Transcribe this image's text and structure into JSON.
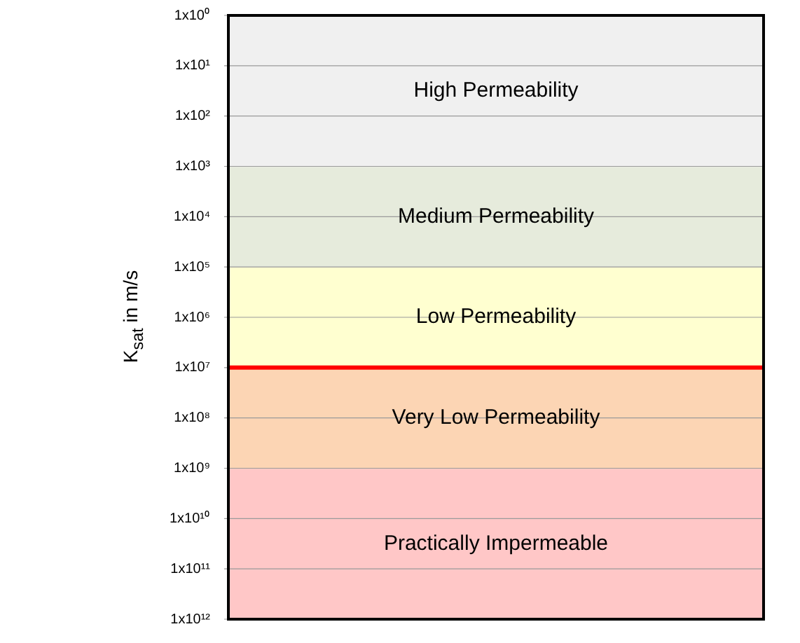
{
  "chart_data": {
    "type": "bar",
    "ylabel": "K$_{sat}$ in m/s",
    "log": "y",
    "ylim": [
      1000000000000.0,
      1
    ],
    "yticks": [
      {
        "value": 1,
        "label": "1x10⁰"
      },
      {
        "value": 10.0,
        "label": "1x10¹"
      },
      {
        "value": 100.0,
        "label": "1x10²"
      },
      {
        "value": 1000.0,
        "label": "1x10³"
      },
      {
        "value": 10000.0,
        "label": "1x10⁴"
      },
      {
        "value": 100000.0,
        "label": "1x10⁵"
      },
      {
        "value": 1000000.0,
        "label": "1x10⁶"
      },
      {
        "value": 10000000.0,
        "label": "1x10⁷"
      },
      {
        "value": 100000000.0,
        "label": "1x10⁸"
      },
      {
        "value": 1000000000.0,
        "label": "1x10⁹"
      },
      {
        "value": 10000000000.0,
        "label": "1x10¹⁰"
      },
      {
        "value": 100000000000.0,
        "label": "1x10¹¹"
      },
      {
        "value": 1000000000000.0,
        "label": "1x10¹²"
      }
    ],
    "grid": "y",
    "categories": [
      null
    ],
    "series": [
      {
        "name": "High Permeability",
        "color": "#f0f0f0",
        "base": [
          1
        ],
        "values": [
          999
        ]
      },
      {
        "name": "Medium Permeability",
        "color": "#e6ebdc",
        "base": [
          1000.0
        ],
        "values": [
          99000
        ]
      },
      {
        "name": "Low Permeability",
        "color": "#ffffd0",
        "base": [
          100000.0
        ],
        "values": [
          9900000
        ]
      },
      {
        "name": "Very Low Permeability",
        "color": "#fcd5b4",
        "base": [
          10000000.0
        ],
        "values": [
          990000000
        ]
      },
      {
        "name": "Practically Impermeable",
        "color": "#ffc7c7",
        "base": [
          1000000000.0
        ],
        "values": [
          999000000000
        ]
      }
    ],
    "ref_lines": [
      {
        "axis": "y",
        "value": 10000000.0,
        "color": "#ff0000"
      }
    ]
  }
}
